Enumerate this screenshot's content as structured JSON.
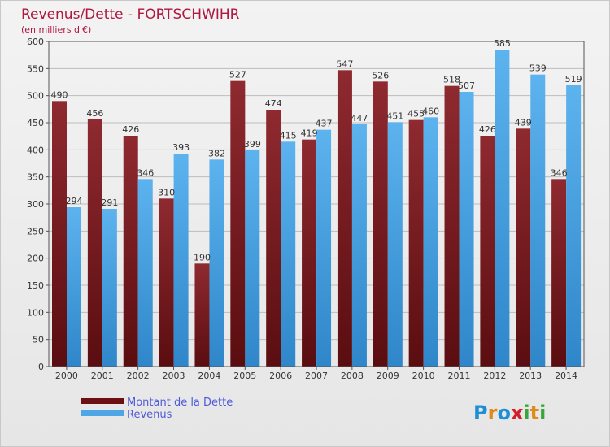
{
  "chart_data": {
    "type": "bar",
    "title": "Revenus/Dette - FORTSCHWIHR",
    "subtitle": "(en milliers d'€)",
    "categories": [
      "2000",
      "2001",
      "2002",
      "2003",
      "2004",
      "2005",
      "2006",
      "2007",
      "2008",
      "2009",
      "2010",
      "2011",
      "2012",
      "2013",
      "2014"
    ],
    "series": [
      {
        "name": "Montant de la Dette",
        "color": "#7d1a1f",
        "values": [
          490,
          456,
          426,
          310,
          190,
          527,
          474,
          419,
          547,
          526,
          455,
          518,
          426,
          439,
          346
        ]
      },
      {
        "name": "Revenus",
        "color": "#4ea6e6",
        "values": [
          294,
          291,
          346,
          393,
          382,
          399,
          415,
          437,
          447,
          451,
          460,
          507,
          585,
          539,
          519
        ]
      }
    ],
    "ylim": [
      0,
      600
    ],
    "yticks": [
      0,
      50,
      100,
      150,
      200,
      250,
      300,
      350,
      400,
      450,
      500,
      550,
      600
    ],
    "grid": true,
    "legend": "bottom-left"
  },
  "logo": {
    "letters": [
      "P",
      "r",
      "o",
      "x",
      "i",
      "t",
      "i"
    ],
    "colors": [
      "#1e8fd6",
      "#e08a1e",
      "#1e8fd6",
      "#d21f2a",
      "#3aa63a",
      "#e08a1e",
      "#3aa63a"
    ]
  }
}
